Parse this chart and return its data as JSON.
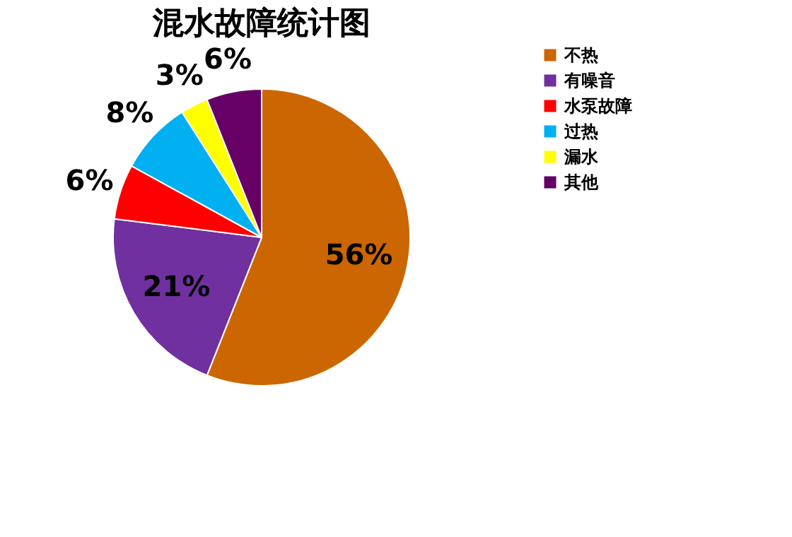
{
  "chart_data": {
    "type": "pie",
    "title": "混水故障统计图",
    "categories": [
      "不热",
      "有噪音",
      "水泵故障",
      "过热",
      "漏水",
      "其他"
    ],
    "values": [
      56,
      21,
      6,
      8,
      3,
      6
    ],
    "colors": [
      "#cc6600",
      "#7030a0",
      "#ff0000",
      "#00b0f0",
      "#ffff00",
      "#660066"
    ],
    "value_labels": [
      "56%",
      "21%",
      "6%",
      "8%",
      "3%",
      "6%"
    ],
    "legend": "right"
  }
}
